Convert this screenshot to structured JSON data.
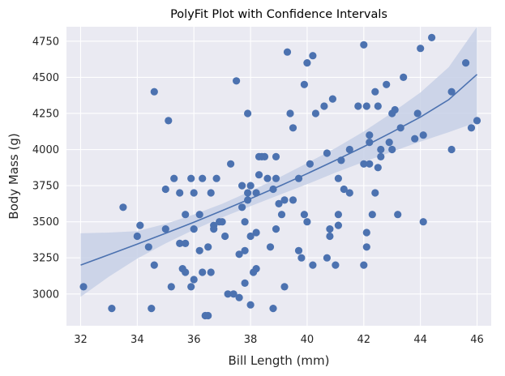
{
  "chart_data": {
    "type": "scatter",
    "title": "PolyFit Plot with Confidence Intervals",
    "xlabel": "Bill Length (mm)",
    "ylabel": "Body Mass (g)",
    "xlim": [
      31.5,
      46.5
    ],
    "ylim": [
      2780,
      4850
    ],
    "xticks": [
      32,
      34,
      36,
      38,
      40,
      42,
      44,
      46
    ],
    "yticks": [
      3000,
      3250,
      3500,
      3750,
      4000,
      4250,
      4500,
      4750
    ],
    "grid": true,
    "colors": {
      "background": "#eaeaf2",
      "points": "#4c72b0",
      "fit": "#4c72b0",
      "band": "#c7d0e6"
    },
    "fit": {
      "x": [
        32,
        33,
        34,
        35,
        36,
        37,
        38,
        39,
        40,
        41,
        42,
        43,
        44,
        45,
        46
      ],
      "y": [
        3200,
        3272,
        3345,
        3420,
        3497,
        3577,
        3660,
        3745,
        3833,
        3925,
        4020,
        4120,
        4225,
        4345,
        4520
      ],
      "lower": [
        2980,
        3120,
        3245,
        3350,
        3445,
        3530,
        3608,
        3685,
        3760,
        3840,
        3915,
        3985,
        4055,
        4120,
        4190
      ],
      "upper": [
        3420,
        3425,
        3435,
        3485,
        3550,
        3624,
        3712,
        3805,
        3906,
        4010,
        4125,
        4255,
        4395,
        4570,
        4850
      ]
    },
    "points": [
      [
        32.1,
        3050
      ],
      [
        33.1,
        2900
      ],
      [
        33.5,
        3600
      ],
      [
        34.0,
        3400
      ],
      [
        34.1,
        3475
      ],
      [
        34.4,
        3325
      ],
      [
        34.5,
        2900
      ],
      [
        34.6,
        3200
      ],
      [
        34.6,
        4400
      ],
      [
        35.0,
        3725
      ],
      [
        35.0,
        3450
      ],
      [
        35.1,
        4200
      ],
      [
        35.2,
        3050
      ],
      [
        35.3,
        3800
      ],
      [
        35.5,
        3700
      ],
      [
        35.5,
        3350
      ],
      [
        35.6,
        3175
      ],
      [
        35.7,
        3150
      ],
      [
        35.7,
        3550
      ],
      [
        35.7,
        3350
      ],
      [
        35.9,
        3800
      ],
      [
        35.9,
        3050
      ],
      [
        36.0,
        3700
      ],
      [
        36.0,
        3450
      ],
      [
        36.0,
        3100
      ],
      [
        36.2,
        3550
      ],
      [
        36.2,
        3300
      ],
      [
        36.3,
        3800
      ],
      [
        36.3,
        3150
      ],
      [
        36.4,
        2850
      ],
      [
        36.5,
        2850
      ],
      [
        36.5,
        3325
      ],
      [
        36.6,
        3700
      ],
      [
        36.6,
        3150
      ],
      [
        36.7,
        3475
      ],
      [
        36.7,
        3450
      ],
      [
        36.8,
        3800
      ],
      [
        36.9,
        3500
      ],
      [
        37.0,
        3500
      ],
      [
        37.1,
        3400
      ],
      [
        37.2,
        3000
      ],
      [
        37.3,
        3900
      ],
      [
        37.4,
        3000
      ],
      [
        37.5,
        4475
      ],
      [
        37.6,
        3275
      ],
      [
        37.6,
        2975
      ],
      [
        37.7,
        3750
      ],
      [
        37.7,
        3600
      ],
      [
        37.8,
        3500
      ],
      [
        37.8,
        3300
      ],
      [
        37.8,
        3075
      ],
      [
        37.9,
        4250
      ],
      [
        37.9,
        3700
      ],
      [
        37.9,
        3650
      ],
      [
        38.0,
        3750
      ],
      [
        38.0,
        3400
      ],
      [
        38.0,
        2925
      ],
      [
        38.1,
        3150
      ],
      [
        38.2,
        3700
      ],
      [
        38.2,
        3425
      ],
      [
        38.2,
        3175
      ],
      [
        38.3,
        3825
      ],
      [
        38.3,
        3950
      ],
      [
        38.4,
        3950
      ],
      [
        38.5,
        3950
      ],
      [
        38.6,
        3800
      ],
      [
        38.7,
        3325
      ],
      [
        38.8,
        3725
      ],
      [
        38.8,
        2900
      ],
      [
        38.9,
        3450
      ],
      [
        38.9,
        3800
      ],
      [
        38.9,
        3950
      ],
      [
        39.0,
        3625
      ],
      [
        39.1,
        3550
      ],
      [
        39.2,
        3050
      ],
      [
        39.2,
        3650
      ],
      [
        39.3,
        4675
      ],
      [
        39.4,
        4250
      ],
      [
        39.5,
        3650
      ],
      [
        39.5,
        4150
      ],
      [
        39.7,
        3800
      ],
      [
        39.7,
        3300
      ],
      [
        39.8,
        3250
      ],
      [
        39.9,
        3550
      ],
      [
        39.9,
        4450
      ],
      [
        40.0,
        3500
      ],
      [
        40.0,
        4600
      ],
      [
        40.1,
        3900
      ],
      [
        40.2,
        3200
      ],
      [
        40.2,
        4650
      ],
      [
        40.3,
        4250
      ],
      [
        40.6,
        4300
      ],
      [
        40.7,
        3975
      ],
      [
        40.7,
        3250
      ],
      [
        40.8,
        3450
      ],
      [
        40.8,
        3400
      ],
      [
        40.9,
        4350
      ],
      [
        41.0,
        3200
      ],
      [
        41.1,
        3550
      ],
      [
        41.1,
        3800
      ],
      [
        41.1,
        3475
      ],
      [
        41.2,
        3925
      ],
      [
        41.3,
        3725
      ],
      [
        41.5,
        4000
      ],
      [
        41.5,
        3700
      ],
      [
        41.8,
        4300
      ],
      [
        42.0,
        3200
      ],
      [
        42.0,
        3900
      ],
      [
        42.0,
        4725
      ],
      [
        42.1,
        4300
      ],
      [
        42.1,
        3425
      ],
      [
        42.1,
        3325
      ],
      [
        42.2,
        4050
      ],
      [
        42.2,
        3900
      ],
      [
        42.2,
        4100
      ],
      [
        42.3,
        3550
      ],
      [
        42.4,
        3700
      ],
      [
        42.4,
        4400
      ],
      [
        42.5,
        3875
      ],
      [
        42.5,
        4300
      ],
      [
        42.6,
        3950
      ],
      [
        42.6,
        4000
      ],
      [
        42.8,
        4450
      ],
      [
        42.9,
        4050
      ],
      [
        43.0,
        4250
      ],
      [
        43.0,
        4000
      ],
      [
        43.1,
        4275
      ],
      [
        43.2,
        3550
      ],
      [
        43.3,
        4150
      ],
      [
        43.4,
        4500
      ],
      [
        43.8,
        4075
      ],
      [
        43.9,
        4250
      ],
      [
        44.0,
        4700
      ],
      [
        44.1,
        3500
      ],
      [
        44.1,
        4100
      ],
      [
        44.4,
        4775
      ],
      [
        45.1,
        4400
      ],
      [
        45.1,
        4000
      ],
      [
        45.6,
        4600
      ],
      [
        45.8,
        4150
      ],
      [
        46.0,
        4200
      ]
    ]
  }
}
